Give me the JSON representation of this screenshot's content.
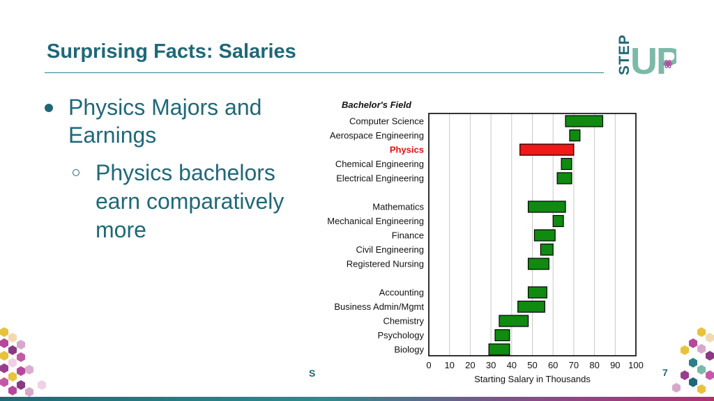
{
  "slide": {
    "title": "Surprising Facts: Salaries",
    "footer_left": "S",
    "page_number": "7"
  },
  "logo": {
    "top_text": "STEP",
    "main_text": "UP"
  },
  "bullets": {
    "level1": "Physics Majors and Earnings",
    "level2": "Physics bachelors earn comparatively more"
  },
  "colors": {
    "title": "#1f6878",
    "bar_default": "#108a10",
    "bar_highlight": "#f01818",
    "label_highlight": "#e01010"
  },
  "chart_data": {
    "type": "bar",
    "orientation": "horizontal",
    "category_header": "Bachelor's Field",
    "xlabel": "Starting Salary in Thousands",
    "xlim": [
      0,
      100
    ],
    "xticks": [
      0,
      10,
      20,
      30,
      40,
      50,
      60,
      70,
      80,
      90,
      100
    ],
    "grid": true,
    "highlight": "Physics",
    "groups": [
      [
        {
          "label": "Computer Science",
          "low": 66,
          "high": 84
        },
        {
          "label": "Aerospace Engineering",
          "low": 68,
          "high": 73
        },
        {
          "label": "Physics",
          "low": 44,
          "high": 70
        },
        {
          "label": "Chemical Engineering",
          "low": 64,
          "high": 69
        },
        {
          "label": "Electrical Engineering",
          "low": 62,
          "high": 69
        }
      ],
      [
        {
          "label": "Mathematics",
          "low": 48,
          "high": 66
        },
        {
          "label": "Mechanical Engineering",
          "low": 60,
          "high": 65
        },
        {
          "label": "Finance",
          "low": 51,
          "high": 61
        },
        {
          "label": "Civil Engineering",
          "low": 54,
          "high": 60
        },
        {
          "label": "Registered Nursing",
          "low": 48,
          "high": 58
        }
      ],
      [
        {
          "label": "Accounting",
          "low": 48,
          "high": 57
        },
        {
          "label": "Business Admin/Mgmt",
          "low": 43,
          "high": 56
        },
        {
          "label": "Chemistry",
          "low": 34,
          "high": 48
        },
        {
          "label": "Psychology",
          "low": 32,
          "high": 39
        },
        {
          "label": "Biology",
          "low": 29,
          "high": 39
        }
      ]
    ]
  }
}
